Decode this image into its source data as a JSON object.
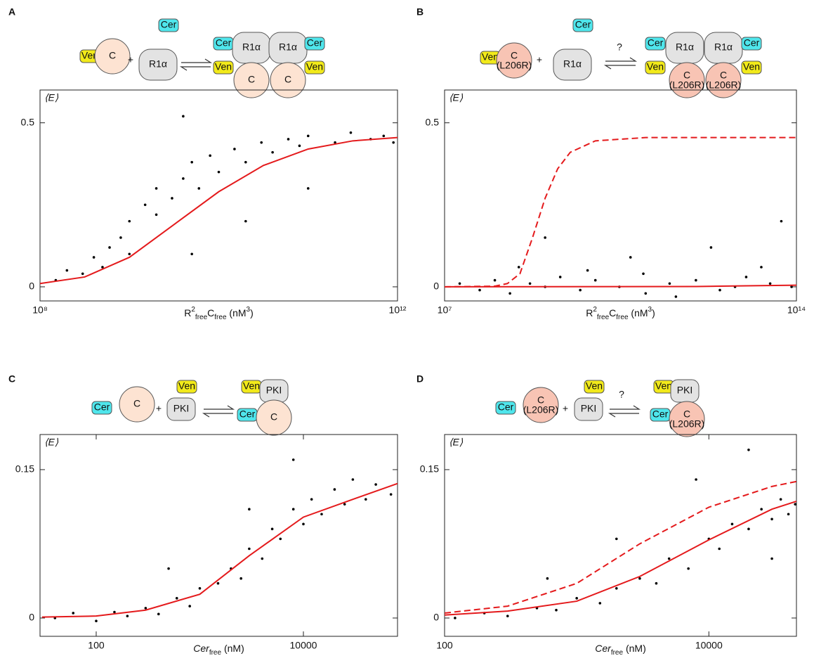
{
  "chart_data": [
    {
      "type": "scatter",
      "panel": "A",
      "diagram_labels": [
        "Ven",
        "C",
        "+",
        "Cer",
        "R1α",
        "Cer",
        "R1α",
        "R1α",
        "Cer",
        "Ven",
        "C",
        "C",
        "Ven"
      ],
      "ylabel": "⟨E⟩",
      "xlabel": [
        {
          "text": "R"
        },
        {
          "text": "2",
          "style": "sup"
        },
        {
          "text": "free",
          "style": "sub"
        },
        {
          "text": "C"
        },
        {
          "text": "free",
          "style": "sub"
        },
        {
          "text": " (nM"
        },
        {
          "text": "3",
          "style": "sup"
        },
        {
          "text": ")"
        }
      ],
      "xscale": "log",
      "xlim": [
        100000000.0,
        1000000000000.0
      ],
      "ylim": [
        -0.043,
        0.6
      ],
      "xticks": [
        {
          "value": 100000000.0,
          "label": "10⁸"
        },
        {
          "value": 1000000000000.0,
          "label": "10¹²"
        }
      ],
      "yticks": [
        0,
        0.5
      ],
      "series": [
        {
          "color": "#000000",
          "mode": "markers",
          "x": [
            150000000.0,
            200000000.0,
            300000000.0,
            400000000.0,
            500000000.0,
            600000000.0,
            800000000.0,
            1000000000.0,
            1000000000.0,
            1500000000.0,
            2000000000.0,
            2000000000.0,
            3000000000.0,
            4000000000.0,
            5000000000.0,
            6000000000.0,
            8000000000.0,
            10000000000.0,
            15000000000.0,
            20000000000.0,
            30000000000.0,
            40000000000.0,
            60000000000.0,
            80000000000.0,
            100000000000.0,
            200000000000.0,
            300000000000.0,
            500000000000.0,
            700000000000.0,
            900000000000.0,
            5000000000.0,
            20000000000.0,
            4000000000.0,
            100000000000.0
          ],
          "values": [
            0.02,
            0.05,
            0.04,
            0.09,
            0.06,
            0.12,
            0.15,
            0.2,
            0.1,
            0.25,
            0.22,
            0.3,
            0.27,
            0.33,
            0.38,
            0.3,
            0.4,
            0.35,
            0.42,
            0.38,
            0.44,
            0.41,
            0.45,
            0.43,
            0.46,
            0.44,
            0.47,
            0.45,
            0.46,
            0.44,
            0.1,
            0.2,
            0.52,
            0.3
          ]
        },
        {
          "color": "#e41a1c",
          "mode": "line",
          "dash": false,
          "x": [
            100000000.0,
            316000000.0,
            1000000000.0,
            3160000000.0,
            10000000000.0,
            31600000000.0,
            100000000000.0,
            316000000000.0,
            1000000000000.0
          ],
          "values": [
            0.01,
            0.03,
            0.09,
            0.19,
            0.29,
            0.37,
            0.42,
            0.445,
            0.455
          ]
        }
      ]
    },
    {
      "type": "scatter",
      "panel": "B",
      "diagram_labels": [
        "Ven",
        "C",
        "(L206R)",
        "+",
        "Cer",
        "R1α",
        "?",
        "Cer",
        "R1α",
        "R1α",
        "Cer",
        "Ven",
        "C",
        "(L206R)",
        "C",
        "(L206R)",
        "Ven"
      ],
      "ylabel": "⟨E⟩",
      "xlabel": [
        {
          "text": "R"
        },
        {
          "text": "2",
          "style": "sup"
        },
        {
          "text": "free",
          "style": "sub"
        },
        {
          "text": "C"
        },
        {
          "text": "free",
          "style": "sub"
        },
        {
          "text": " (nM"
        },
        {
          "text": "3",
          "style": "sup"
        },
        {
          "text": ")"
        }
      ],
      "xscale": "log",
      "xlim": [
        10000000.0,
        100000000000000.0
      ],
      "ylim": [
        -0.043,
        0.6
      ],
      "xticks": [
        {
          "value": 10000000.0,
          "label": "10⁷"
        },
        {
          "value": 100000000000000.0,
          "label": "10¹⁴"
        }
      ],
      "yticks": [
        0,
        0.5
      ],
      "series": [
        {
          "color": "#000000",
          "mode": "markers",
          "x": [
            20000000.0,
            50000000.0,
            100000000.0,
            200000000.0,
            500000000.0,
            1000000000.0,
            2000000000.0,
            5000000000.0,
            10000000000.0,
            30000000000.0,
            100000000000.0,
            300000000000.0,
            1000000000000.0,
            3000000000000.0,
            10000000000000.0,
            30000000000000.0,
            80000000000000.0,
            1000000000.0,
            50000000000.0,
            2000000000000.0,
            50000000000000.0,
            300000000.0,
            400000000000.0,
            7000000000.0,
            20000000000000.0,
            6000000000000.0,
            90000000000.0
          ],
          "values": [
            0.01,
            -0.01,
            0.02,
            -0.02,
            0.01,
            0.0,
            0.03,
            -0.01,
            0.02,
            0.0,
            -0.02,
            0.01,
            0.02,
            -0.01,
            0.03,
            0.01,
            0.0,
            0.15,
            0.09,
            0.12,
            0.2,
            0.06,
            -0.03,
            0.05,
            0.06,
            0.0,
            0.04
          ]
        },
        {
          "color": "#e41a1c",
          "mode": "line",
          "dash": true,
          "x": [
            10000000.0,
            100000000.0,
            178000000.0,
            316000000.0,
            562000000.0,
            1000000000.0,
            1780000000.0,
            3160000000.0,
            10000000000.0,
            100000000000.0,
            100000000000000.0
          ],
          "values": [
            0,
            0.002,
            0.01,
            0.04,
            0.15,
            0.27,
            0.36,
            0.41,
            0.445,
            0.455,
            0.455
          ]
        },
        {
          "color": "#e41a1c",
          "mode": "line",
          "dash": false,
          "x": [
            10000000.0,
            1000000000000.0,
            10000000000000.0,
            100000000000000.0
          ],
          "values": [
            0,
            0.001,
            0.003,
            0.005
          ]
        }
      ]
    },
    {
      "type": "scatter",
      "panel": "C",
      "diagram_labels": [
        "Cer",
        "C",
        "+",
        "Ven",
        "PKI",
        "Ven",
        "PKI",
        "Cer",
        "C"
      ],
      "ylabel": "⟨E⟩",
      "xlabel": [
        {
          "text": "Cer",
          "style": "italic"
        },
        {
          "text": "free",
          "style": "sub"
        },
        {
          "text": " (nM)"
        }
      ],
      "xscale": "log",
      "xlim": [
        28.7,
        81000
      ],
      "ylim": [
        -0.0185,
        0.1855
      ],
      "xticks": [
        100,
        10000
      ],
      "yticks": [
        0,
        0.15
      ],
      "series": [
        {
          "color": "#000000",
          "mode": "markers",
          "x": [
            40,
            60,
            100,
            150,
            200,
            300,
            400,
            600,
            800,
            1000,
            1500,
            2000,
            2500,
            3000,
            4000,
            5000,
            6000,
            8000,
            10000,
            12000,
            15000,
            20000,
            25000,
            30000,
            40000,
            50000,
            70000,
            8000,
            3000,
            500
          ],
          "values": [
            0.0,
            0.005,
            -0.003,
            0.006,
            0.002,
            0.01,
            0.004,
            0.02,
            0.012,
            0.03,
            0.035,
            0.05,
            0.04,
            0.07,
            0.06,
            0.09,
            0.08,
            0.11,
            0.095,
            0.12,
            0.105,
            0.13,
            0.115,
            0.14,
            0.12,
            0.135,
            0.125,
            0.16,
            0.11,
            0.05
          ]
        },
        {
          "color": "#e41a1c",
          "mode": "line",
          "dash": false,
          "x": [
            30,
            100,
            300,
            1000,
            3000,
            10000,
            30000,
            81000
          ],
          "values": [
            0.001,
            0.002,
            0.008,
            0.024,
            0.063,
            0.102,
            0.12,
            0.136
          ]
        }
      ]
    },
    {
      "type": "scatter",
      "panel": "D",
      "diagram_labels": [
        "Cer",
        "C",
        "(L206R)",
        "+",
        "Ven",
        "PKI",
        "?",
        "Ven",
        "PKI",
        "Cer",
        "C",
        "(L206R)"
      ],
      "ylabel": "⟨E⟩",
      "xlabel": [
        {
          "text": "Cer",
          "style": "italic"
        },
        {
          "text": "free",
          "style": "sub"
        },
        {
          "text": " (nM)"
        }
      ],
      "xscale": "log",
      "xlim": [
        100,
        46000
      ],
      "ylim": [
        -0.0185,
        0.1855
      ],
      "xticks": [
        100,
        10000
      ],
      "yticks": [
        0,
        0.15
      ],
      "series": [
        {
          "color": "#000000",
          "mode": "markers",
          "x": [
            120,
            200,
            300,
            500,
            700,
            1000,
            1500,
            2000,
            3000,
            4000,
            5000,
            7000,
            10000,
            12000,
            15000,
            20000,
            25000,
            30000,
            35000,
            40000,
            45000,
            2000,
            8000,
            20000,
            600,
            30000
          ],
          "values": [
            0.0,
            0.005,
            0.002,
            0.01,
            0.008,
            0.02,
            0.015,
            0.03,
            0.04,
            0.035,
            0.06,
            0.05,
            0.08,
            0.07,
            0.095,
            0.09,
            0.11,
            0.1,
            0.12,
            0.105,
            0.115,
            0.08,
            0.14,
            0.17,
            0.04,
            0.06
          ]
        },
        {
          "color": "#e41a1c",
          "mode": "line",
          "dash": false,
          "x": [
            100,
            300,
            1000,
            3000,
            10000,
            30000,
            46000
          ],
          "values": [
            0.003,
            0.007,
            0.017,
            0.042,
            0.079,
            0.11,
            0.118
          ]
        },
        {
          "color": "#e41a1c",
          "mode": "line",
          "dash": true,
          "x": [
            100,
            300,
            1000,
            3000,
            10000,
            30000,
            46000
          ],
          "values": [
            0.005,
            0.012,
            0.035,
            0.075,
            0.112,
            0.133,
            0.138
          ]
        }
      ]
    }
  ]
}
